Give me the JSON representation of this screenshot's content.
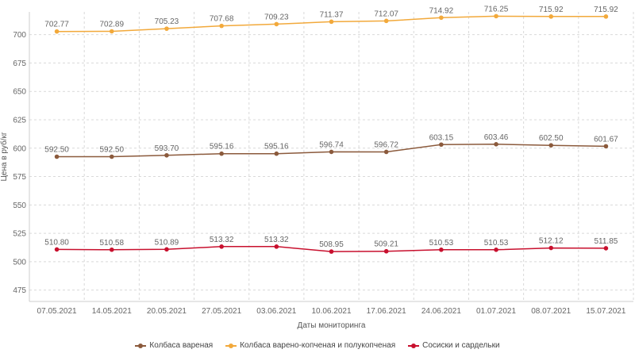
{
  "chart_data": {
    "type": "line",
    "title": "",
    "xlabel": "Даты мониторинга",
    "ylabel": "Цена в руб/кг",
    "ylim": [
      465,
      720
    ],
    "yticks": [
      475,
      500,
      525,
      550,
      575,
      600,
      625,
      650,
      675,
      700
    ],
    "grid": true,
    "legend_position": "bottom",
    "categories": [
      "07.05.2021",
      "14.05.2021",
      "20.05.2021",
      "27.05.2021",
      "03.06.2021",
      "10.06.2021",
      "17.06.2021",
      "24.06.2021",
      "01.07.2021",
      "08.07.2021",
      "15.07.2021"
    ],
    "series": [
      {
        "name": "Колбаса вареная",
        "color": "#8B5A3C",
        "values": [
          592.5,
          592.5,
          593.7,
          595.16,
          595.16,
          596.74,
          596.72,
          603.15,
          603.46,
          602.5,
          601.67
        ],
        "labels": [
          "592.50",
          "592.50",
          "593.70",
          "595.16",
          "595.16",
          "596.74",
          "596.72",
          "603.15",
          "603.46",
          "602.50",
          "601.67"
        ]
      },
      {
        "name": "Колбаса варено-копченая и полукопченая",
        "color": "#F2A93B",
        "values": [
          702.77,
          702.89,
          705.23,
          707.68,
          709.23,
          711.37,
          712.07,
          714.92,
          716.25,
          715.92,
          715.92
        ],
        "labels": [
          "702.77",
          "702.89",
          "705.23",
          "707.68",
          "709.23",
          "711.37",
          "712.07",
          "714.92",
          "716.25",
          "715.92",
          "715.92"
        ]
      },
      {
        "name": "Сосиски и сардельки",
        "color": "#C8102E",
        "values": [
          510.8,
          510.58,
          510.89,
          513.32,
          513.32,
          508.95,
          509.21,
          510.53,
          510.53,
          512.12,
          511.85
        ],
        "labels": [
          "510.80",
          "510.58",
          "510.89",
          "513.32",
          "513.32",
          "508.95",
          "509.21",
          "510.53",
          "510.53",
          "512.12",
          "511.85"
        ]
      }
    ]
  }
}
